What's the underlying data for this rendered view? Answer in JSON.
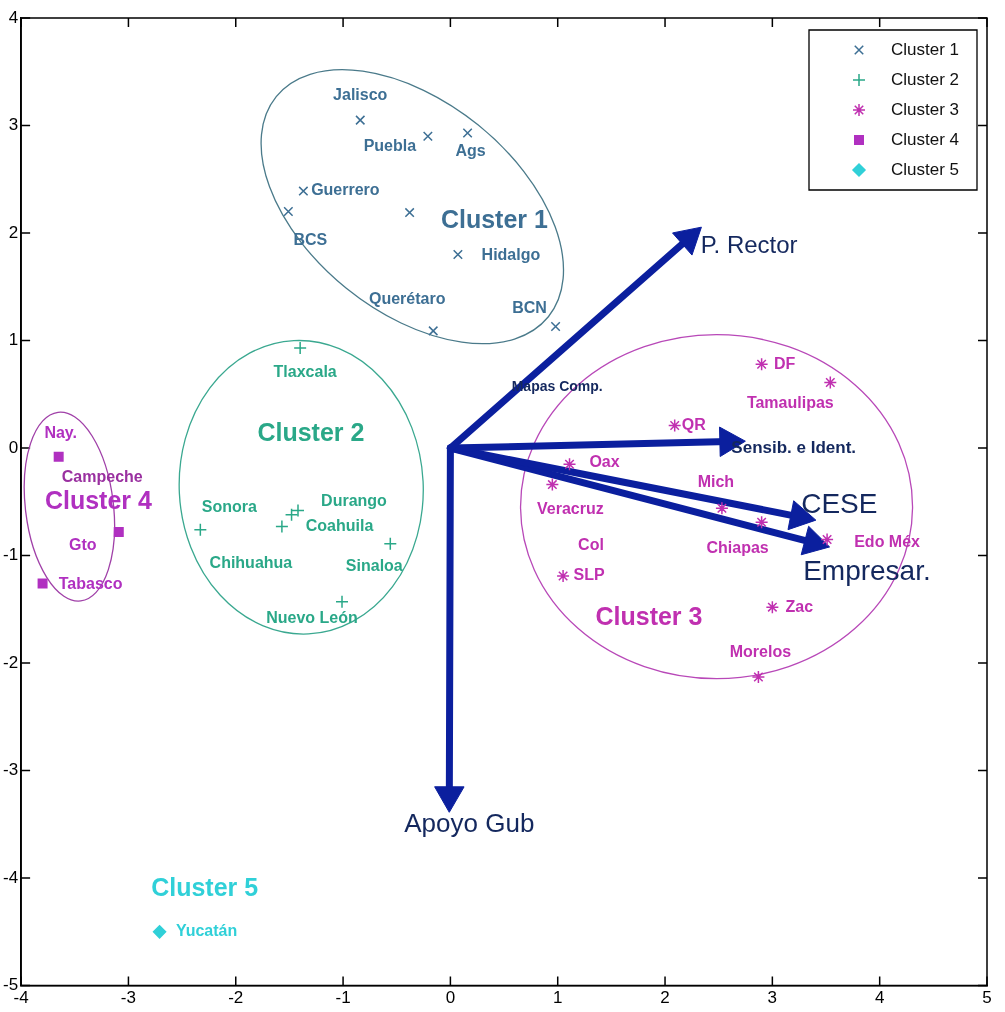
{
  "chart_data": {
    "type": "scatter",
    "xlim": [
      -4,
      5
    ],
    "ylim": [
      -5,
      4
    ],
    "xticks": [
      -4,
      -3,
      -2,
      -1,
      0,
      1,
      2,
      3,
      4,
      5
    ],
    "yticks": [
      -5,
      -4,
      -3,
      -2,
      -1,
      0,
      1,
      2,
      3,
      4
    ],
    "grid": false,
    "legend": "top right",
    "series": [
      {
        "name": "Cluster 1",
        "marker": "x",
        "color": "#3d6f94",
        "x": [
          -0.84,
          -0.21,
          0.16,
          -1.37,
          -1.51,
          -0.38,
          0.07,
          -0.16,
          0.98
        ],
        "values": [
          3.05,
          2.9,
          2.93,
          2.39,
          2.2,
          2.19,
          1.8,
          1.09,
          1.13
        ],
        "value_labels": [
          "Jalisco",
          "Puebla",
          "Ags",
          "Guerrero",
          "BCS",
          null,
          "Hidalgo",
          "Querétaro",
          "BCN"
        ]
      },
      {
        "name": "Cluster 2",
        "marker": "cross",
        "color": "#2aa888",
        "x": [
          -1.4,
          -1.42,
          -1.48,
          -1.57,
          -2.33,
          -0.56,
          -1.01
        ],
        "values": [
          0.93,
          -0.58,
          -0.62,
          -0.73,
          -0.76,
          -0.89,
          -1.43
        ],
        "value_labels": [
          "Tlaxcala",
          "Durango",
          "Coahuila",
          "Chihuahua",
          "Sonora",
          "Sinaloa",
          "Nuevo León"
        ]
      },
      {
        "name": "Cluster 3",
        "color": "#c030b0",
        "x": [
          2.9,
          3.54,
          2.09,
          1.11,
          0.95,
          2.53,
          2.9,
          3.51,
          1.05,
          3.0,
          2.87
        ],
        "values": [
          0.78,
          0.61,
          0.21,
          -0.15,
          -0.34,
          -0.56,
          -0.69,
          -0.85,
          -1.19,
          -1.48,
          -2.13
        ],
        "value_labels": [
          "DF",
          "Tamaulipas",
          "QR",
          "Oax",
          "Veracruz",
          "Mich",
          "Chiapas",
          "Edo Méx",
          "SLP",
          "Zac",
          "Morelos"
        ]
      },
      {
        "name": "Cluster 4",
        "marker": "square",
        "color": "#b030c0",
        "x": [
          -3.65,
          -3.09,
          -3.8
        ],
        "values": [
          -0.08,
          -0.78,
          -1.26
        ],
        "value_labels": [
          "Nay.",
          "Gto",
          "Tabasco"
        ]
      },
      {
        "name": "Cluster 5",
        "marker": "diamond",
        "color": "#30d0d8",
        "x": [
          -2.71
        ],
        "values": [
          -4.5
        ],
        "value_labels": [
          "Yucatán"
        ]
      },
      {
        "name": "P. Rector",
        "type": "line",
        "marker": "triangle",
        "color": "#0b1f9e",
        "x": [
          0,
          2.22
        ],
        "values": [
          0,
          1.95
        ]
      },
      {
        "name": "Sensib. e Ident.",
        "type": "line",
        "marker": "triangle",
        "color": "#0b1f9e",
        "x": [
          0,
          2.59
        ],
        "values": [
          0,
          0.06
        ]
      },
      {
        "name": "CESE",
        "type": "line",
        "marker": "triangle",
        "color": "#0b1f9e",
        "x": [
          0,
          3.25
        ],
        "values": [
          0,
          -0.64
        ]
      },
      {
        "name": "Empresar.",
        "type": "line",
        "marker": "triangle",
        "color": "#0b1f9e",
        "x": [
          0,
          3.38
        ],
        "values": [
          0,
          -0.88
        ]
      },
      {
        "name": "Apoyo Gub",
        "type": "line",
        "marker": "triangle",
        "color": "#0b1f9e",
        "x": [
          0,
          -0.01
        ],
        "values": [
          0,
          -3.23
        ]
      }
    ],
    "annotations": [
      "Campeche",
      "Col",
      "Mapas Comp."
    ]
  }
}
